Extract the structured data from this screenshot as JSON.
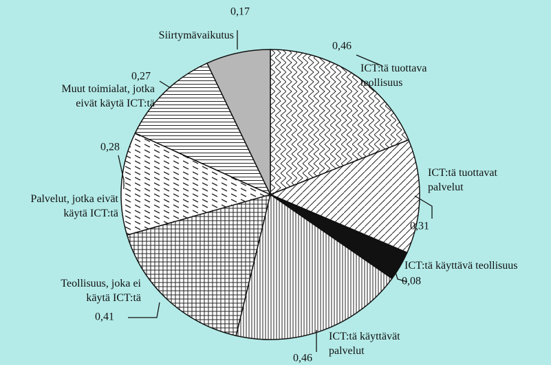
{
  "chart_data": {
    "type": "pie",
    "categories": [
      "ICT:tä tuottava\nteollisuus",
      "ICT:tä tuottavat\npalvelut",
      "ICT:tä käyttävä teollisuus",
      "ICT:tä käyttävät\npalvelut",
      "Teollisuus, joka ei\nkäytä ICT:tä",
      "Palvelut, jotka eivät\nkäytä ICT:tä",
      "Muut toimialat, jotka\neivät käytä ICT:tä",
      "Siirtymävaikutus"
    ],
    "values": [
      0.46,
      0.31,
      0.08,
      0.46,
      0.41,
      0.28,
      0.27,
      0.17
    ],
    "value_labels": [
      "0,46",
      "0,31",
      "0,08",
      "0,46",
      "0,41",
      "0,28",
      "0,27",
      "0,17"
    ]
  }
}
